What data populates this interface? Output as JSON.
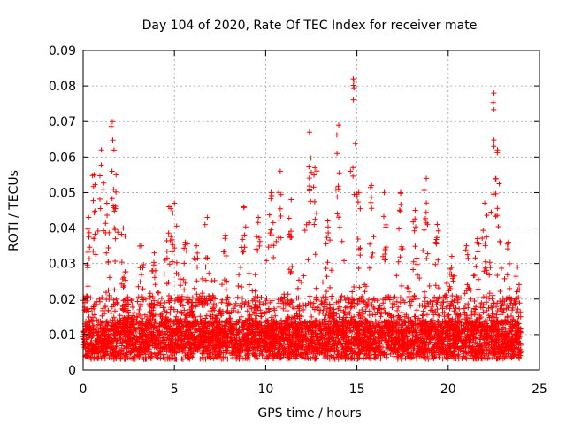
{
  "chart_data": {
    "type": "scatter",
    "title": "Day 104 of 2020, Rate Of TEC Index for receiver mate",
    "xlabel": "GPS time / hours",
    "ylabel": "ROTI / TECUs",
    "xlim": [
      0,
      25
    ],
    "ylim": [
      0,
      0.09
    ],
    "xticks": [
      "0",
      "5",
      "10",
      "15",
      "20",
      "25"
    ],
    "yticks": [
      "0",
      "0.01",
      "0.02",
      "0.03",
      "0.04",
      "0.05",
      "0.06",
      "0.07",
      "0.08",
      "0.09"
    ],
    "grid": true,
    "marker": "+",
    "series": [
      {
        "color": "#ff0000",
        "x_range": [
          0,
          24
        ],
        "typical_range": [
          0.003,
          0.03
        ],
        "peaks": [
          {
            "x": 0.3,
            "y": 0.043
          },
          {
            "x": 0.6,
            "y": 0.055
          },
          {
            "x": 1.0,
            "y": 0.062
          },
          {
            "x": 1.3,
            "y": 0.047
          },
          {
            "x": 1.6,
            "y": 0.07
          },
          {
            "x": 1.8,
            "y": 0.055
          },
          {
            "x": 2.2,
            "y": 0.04
          },
          {
            "x": 3.2,
            "y": 0.035
          },
          {
            "x": 3.9,
            "y": 0.033
          },
          {
            "x": 4.7,
            "y": 0.046
          },
          {
            "x": 5.0,
            "y": 0.047
          },
          {
            "x": 5.6,
            "y": 0.036
          },
          {
            "x": 6.2,
            "y": 0.035
          },
          {
            "x": 6.8,
            "y": 0.043
          },
          {
            "x": 7.8,
            "y": 0.038
          },
          {
            "x": 8.8,
            "y": 0.046
          },
          {
            "x": 9.6,
            "y": 0.043
          },
          {
            "x": 10.3,
            "y": 0.05
          },
          {
            "x": 10.8,
            "y": 0.056
          },
          {
            "x": 11.4,
            "y": 0.048
          },
          {
            "x": 12.4,
            "y": 0.067
          },
          {
            "x": 12.7,
            "y": 0.057
          },
          {
            "x": 13.4,
            "y": 0.042
          },
          {
            "x": 14.0,
            "y": 0.069
          },
          {
            "x": 14.8,
            "y": 0.082
          },
          {
            "x": 15.1,
            "y": 0.05
          },
          {
            "x": 15.8,
            "y": 0.052
          },
          {
            "x": 16.5,
            "y": 0.05
          },
          {
            "x": 17.4,
            "y": 0.05
          },
          {
            "x": 18.2,
            "y": 0.045
          },
          {
            "x": 18.8,
            "y": 0.054
          },
          {
            "x": 19.4,
            "y": 0.041
          },
          {
            "x": 20.2,
            "y": 0.032
          },
          {
            "x": 21.0,
            "y": 0.035
          },
          {
            "x": 21.6,
            "y": 0.037
          },
          {
            "x": 22.0,
            "y": 0.047
          },
          {
            "x": 22.5,
            "y": 0.078
          },
          {
            "x": 22.7,
            "y": 0.062
          },
          {
            "x": 23.3,
            "y": 0.036
          },
          {
            "x": 23.8,
            "y": 0.029
          }
        ]
      }
    ]
  }
}
